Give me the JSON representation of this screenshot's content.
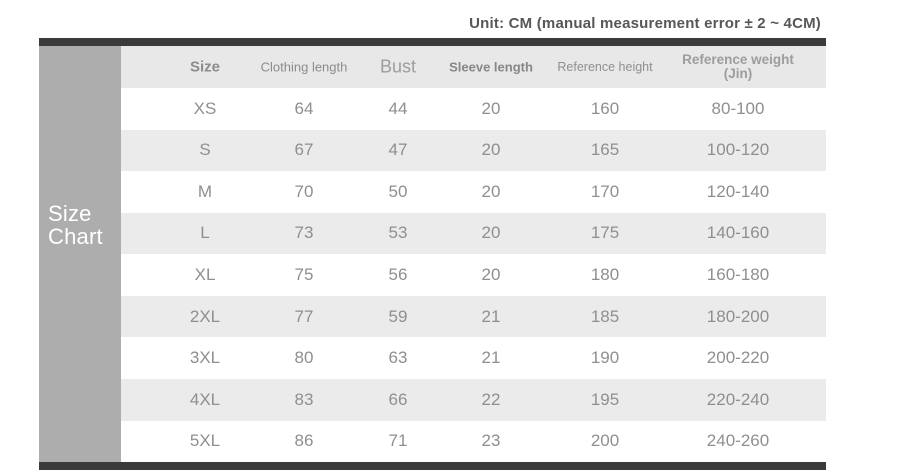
{
  "title": "Unit: CM (manual measurement error ± 2 ~ 4CM)",
  "sidebar_label": {
    "line1": "Size",
    "line2": "Chart"
  },
  "header": {
    "col0": "Size",
    "col1": "Clothing length",
    "col2": "Bust",
    "col3": "Sleeve length",
    "col4": "Reference height",
    "col5_line1": "Reference weight",
    "col5_line2": "(Jin)"
  },
  "chart_data": {
    "type": "table",
    "title": "Unit: CM (manual measurement error ± 2 ~ 4CM)",
    "columns": [
      "Size",
      "Clothing length",
      "Bust",
      "Sleeve length",
      "Reference height",
      "Reference weight (Jin)"
    ],
    "rows": [
      [
        "XS",
        "64",
        "44",
        "20",
        "160",
        "80-100"
      ],
      [
        "S",
        "67",
        "47",
        "20",
        "165",
        "100-120"
      ],
      [
        "M",
        "70",
        "50",
        "20",
        "170",
        "120-140"
      ],
      [
        "L",
        "73",
        "53",
        "20",
        "175",
        "140-160"
      ],
      [
        "XL",
        "75",
        "56",
        "20",
        "180",
        "160-180"
      ],
      [
        "2XL",
        "77",
        "59",
        "21",
        "185",
        "180-200"
      ],
      [
        "3XL",
        "80",
        "63",
        "21",
        "190",
        "200-220"
      ],
      [
        "4XL",
        "83",
        "66",
        "22",
        "195",
        "220-240"
      ],
      [
        "5XL",
        "86",
        "71",
        "23",
        "200",
        "240-260"
      ]
    ]
  },
  "colors": {
    "bar": "#3b3b3b",
    "sidebar_bg": "#adadad",
    "header_bg": "#e8e8e8",
    "row_alt_bg": "#ebebeb",
    "value_text": "#8f8f8f",
    "title_text": "#575757"
  }
}
